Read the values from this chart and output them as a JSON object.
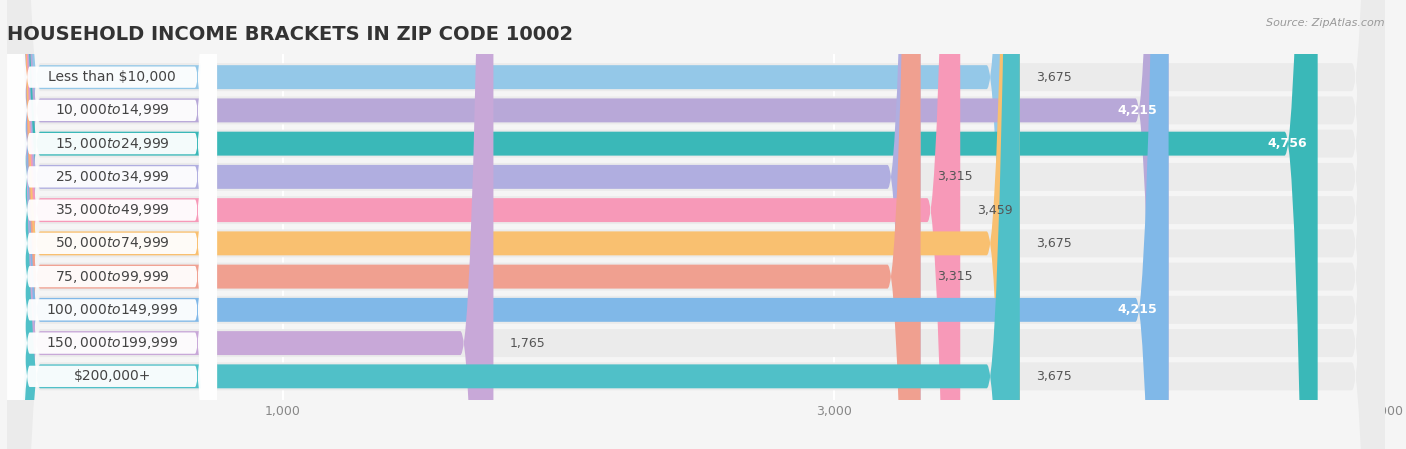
{
  "title": "HOUSEHOLD INCOME BRACKETS IN ZIP CODE 10002",
  "source": "Source: ZipAtlas.com",
  "categories": [
    "Less than $10,000",
    "$10,000 to $14,999",
    "$15,000 to $24,999",
    "$25,000 to $34,999",
    "$35,000 to $49,999",
    "$50,000 to $74,999",
    "$75,000 to $99,999",
    "$100,000 to $149,999",
    "$150,000 to $199,999",
    "$200,000+"
  ],
  "values": [
    3675,
    4215,
    4756,
    3315,
    3459,
    3675,
    3315,
    4215,
    1765,
    3675
  ],
  "bar_colors": [
    "#94c8e8",
    "#b8a8d8",
    "#3ab8b8",
    "#b0aee0",
    "#f799b8",
    "#f9c070",
    "#f0a090",
    "#80b8e8",
    "#c8a8d8",
    "#50c0c8"
  ],
  "value_label_colors": [
    "white",
    "white",
    "white",
    "#555555",
    "white",
    "white",
    "#555555",
    "white",
    "#555555",
    "white"
  ],
  "xlim": [
    0,
    5000
  ],
  "background_color": "#f5f5f5",
  "row_bg_color": "#ebebeb",
  "white_label_bg": "#ffffff",
  "title_fontsize": 14,
  "label_fontsize": 10,
  "value_fontsize": 9
}
